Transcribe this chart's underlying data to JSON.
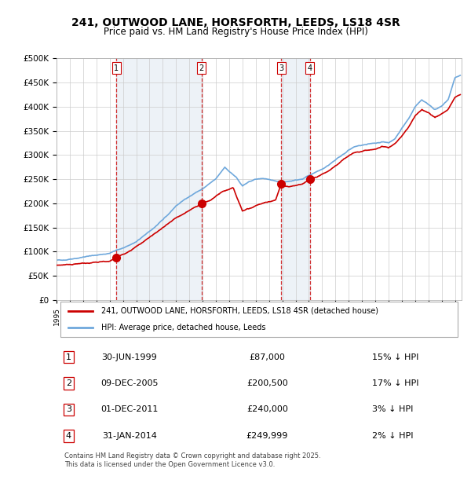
{
  "title": "241, OUTWOOD LANE, HORSFORTH, LEEDS, LS18 4SR",
  "subtitle": "Price paid vs. HM Land Registry's House Price Index (HPI)",
  "footer": "Contains HM Land Registry data © Crown copyright and database right 2025.\nThis data is licensed under the Open Government Licence v3.0.",
  "legend_line1": "241, OUTWOOD LANE, HORSFORTH, LEEDS, LS18 4SR (detached house)",
  "legend_line2": "HPI: Average price, detached house, Leeds",
  "transactions": [
    {
      "num": 1,
      "date": "30-JUN-1999",
      "price": 87000,
      "pct": "15%",
      "dir": "↓",
      "year_x": 1999.5
    },
    {
      "num": 2,
      "date": "09-DEC-2005",
      "price": 200500,
      "pct": "17%",
      "dir": "↓",
      "year_x": 2005.92
    },
    {
      "num": 3,
      "date": "01-DEC-2011",
      "price": 240000,
      "pct": "3%",
      "dir": "↓",
      "year_x": 2011.92
    },
    {
      "num": 4,
      "date": "31-JAN-2014",
      "price": 249999,
      "pct": "2%",
      "dir": "↓",
      "year_x": 2014.08
    }
  ],
  "hpi_color": "#6fa8dc",
  "price_color": "#cc0000",
  "dashed_color": "#cc0000",
  "bg_color": "#dce6f1",
  "plot_bg": "#ffffff",
  "grid_color": "#cccccc",
  "ylim": [
    0,
    500000
  ],
  "yticks": [
    0,
    50000,
    100000,
    150000,
    200000,
    250000,
    300000,
    350000,
    400000,
    450000,
    500000
  ],
  "xlim_start": 1995.0,
  "xlim_end": 2025.5
}
